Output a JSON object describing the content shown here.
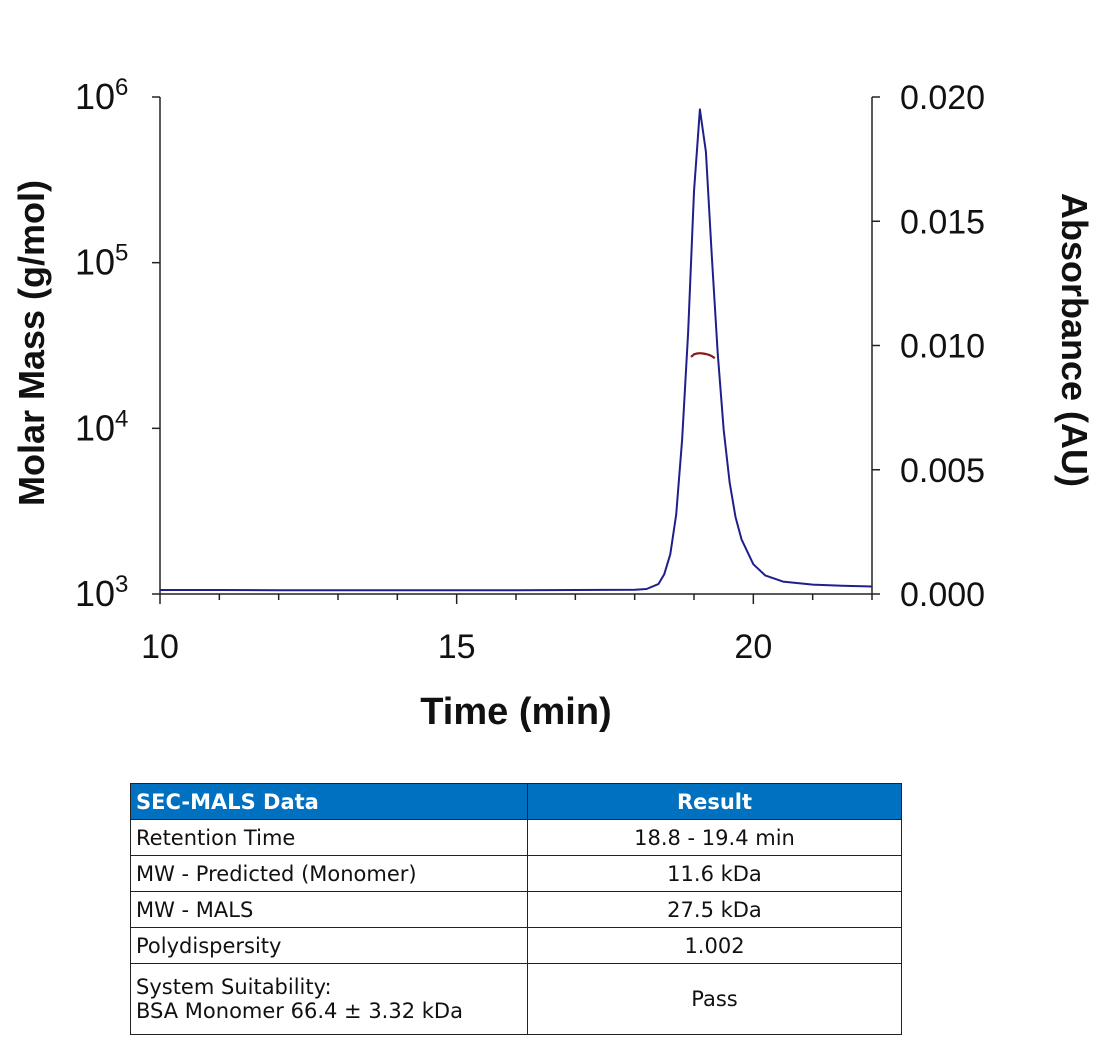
{
  "chart_data": {
    "type": "line",
    "xlabel": "Time (min)",
    "ylabel_left": "Molar Mass (g/mol)",
    "ylabel_right": "Absorbance (AU)",
    "xlim": [
      10,
      22
    ],
    "x_ticks": [
      10,
      15,
      20
    ],
    "x_tick_labels": [
      "10",
      "15",
      "20"
    ],
    "ylim_left": [
      1000,
      1000000
    ],
    "yscale_left": "log",
    "y_ticks_left": [
      {
        "base": "10",
        "exp": "6",
        "value": 1000000
      },
      {
        "base": "10",
        "exp": "5",
        "value": 100000
      },
      {
        "base": "10",
        "exp": "4",
        "value": 10000
      },
      {
        "base": "10",
        "exp": "3",
        "value": 1000
      }
    ],
    "ylim_right": [
      0,
      0.02
    ],
    "y_ticks_right": [
      0.0,
      0.005,
      0.01,
      0.015,
      0.02
    ],
    "y_tick_labels_right": [
      "0.000",
      "0.005",
      "0.010",
      "0.015",
      "0.020"
    ],
    "grid": false,
    "series": [
      {
        "axis": "right",
        "color": "#1f1f8c",
        "points": [
          [
            10.0,
            0.00016
          ],
          [
            11.0,
            0.00016
          ],
          [
            12.0,
            0.00015
          ],
          [
            13.0,
            0.00015
          ],
          [
            14.0,
            0.00015
          ],
          [
            15.0,
            0.00015
          ],
          [
            16.0,
            0.00015
          ],
          [
            17.0,
            0.00016
          ],
          [
            18.0,
            0.00017
          ],
          [
            18.2,
            0.0002
          ],
          [
            18.4,
            0.0004
          ],
          [
            18.5,
            0.0008
          ],
          [
            18.6,
            0.0016
          ],
          [
            18.7,
            0.0032
          ],
          [
            18.8,
            0.0062
          ],
          [
            18.9,
            0.0105
          ],
          [
            19.0,
            0.0162
          ],
          [
            19.1,
            0.0195
          ],
          [
            19.2,
            0.0178
          ],
          [
            19.3,
            0.0136
          ],
          [
            19.4,
            0.0097
          ],
          [
            19.5,
            0.0066
          ],
          [
            19.6,
            0.0045
          ],
          [
            19.7,
            0.0031
          ],
          [
            19.8,
            0.0022
          ],
          [
            20.0,
            0.0012
          ],
          [
            20.2,
            0.00075
          ],
          [
            20.5,
            0.0005
          ],
          [
            21.0,
            0.00038
          ],
          [
            21.5,
            0.00033
          ],
          [
            22.0,
            0.0003
          ]
        ]
      },
      {
        "axis": "left",
        "color": "#8b1a1a",
        "points": [
          [
            18.95,
            27000
          ],
          [
            19.0,
            28000
          ],
          [
            19.05,
            28300
          ],
          [
            19.1,
            28400
          ],
          [
            19.15,
            28300
          ],
          [
            19.2,
            28100
          ],
          [
            19.25,
            27800
          ],
          [
            19.3,
            27300
          ],
          [
            19.35,
            26500
          ]
        ]
      }
    ]
  },
  "table": {
    "header": {
      "col1": "SEC-MALS Data",
      "col2": "Result"
    },
    "rows": [
      {
        "label": "Retention Time",
        "value": "18.8 - 19.4 min"
      },
      {
        "label": "MW - Predicted (Monomer)",
        "value": "11.6 kDa"
      },
      {
        "label": "MW - MALS",
        "value": "27.5 kDa"
      },
      {
        "label": "Polydispersity",
        "value": "1.002"
      }
    ],
    "last_row": {
      "label_line1": "System Suitability:",
      "label_line2": "BSA Monomer 66.4 ± 3.32 kDa",
      "value": "Pass"
    },
    "header_color": "#0070c0"
  }
}
